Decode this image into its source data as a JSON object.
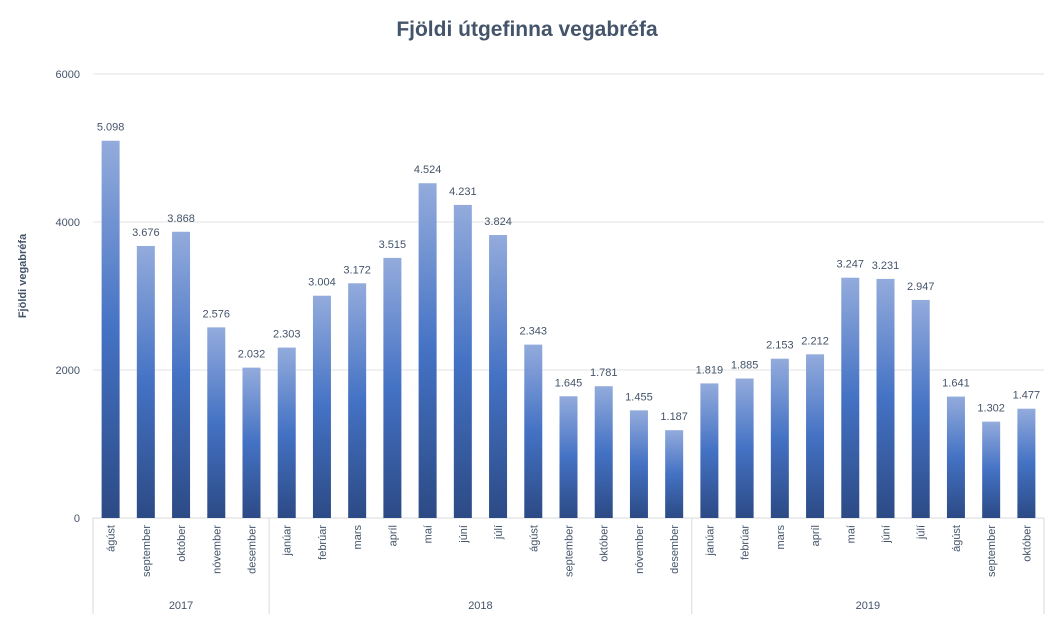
{
  "chart_data": {
    "type": "bar",
    "title": "Fjöldi útgefinna vegabréfa",
    "xlabel": "",
    "ylabel": "Fjöldi vegabréfa",
    "ylim": [
      0,
      6000
    ],
    "yticks": [
      0,
      2000,
      4000,
      6000
    ],
    "grid": true,
    "legend": "none",
    "groups": [
      {
        "year": "2017",
        "months": [
          "ágúst",
          "september",
          "október",
          "nóvember",
          "desember"
        ],
        "values": [
          5098,
          3676,
          3868,
          2576,
          2032
        ],
        "labels": [
          "5.098",
          "3.676",
          "3.868",
          "2.576",
          "2.032"
        ]
      },
      {
        "year": "2018",
        "months": [
          "janúar",
          "febrúar",
          "mars",
          "apríl",
          "maí",
          "júní",
          "júlí",
          "ágúst",
          "september",
          "október",
          "nóvember",
          "desember"
        ],
        "values": [
          2303,
          3004,
          3172,
          3515,
          4524,
          4231,
          3824,
          2343,
          1645,
          1781,
          1455,
          1187
        ],
        "labels": [
          "2.303",
          "3.004",
          "3.172",
          "3.515",
          "4.524",
          "4.231",
          "3.824",
          "2.343",
          "1.645",
          "1.781",
          "1.455",
          "1.187"
        ]
      },
      {
        "year": "2019",
        "months": [
          "janúar",
          "febrúar",
          "mars",
          "apríl",
          "maí",
          "júní",
          "júlí",
          "ágúst",
          "september",
          "október"
        ],
        "values": [
          1819,
          1885,
          2153,
          2212,
          3247,
          3231,
          2947,
          1641,
          1302,
          1477
        ],
        "labels": [
          "1.819",
          "1.885",
          "2.153",
          "2.212",
          "3.247",
          "3.231",
          "2.947",
          "1.641",
          "1.302",
          "1.477"
        ]
      }
    ],
    "colors": {
      "bar_top": "#93abdc",
      "bar_mid": "#4472c4",
      "bar_bottom": "#2c4a85",
      "text": "#44546a",
      "grid": "#e3e3e3"
    }
  }
}
